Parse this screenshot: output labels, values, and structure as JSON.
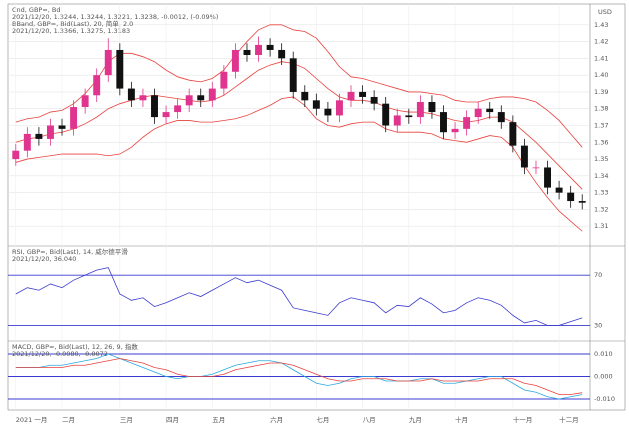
{
  "chart_data": [
    {
      "type": "candlestick",
      "legend": [
        "Cnd, GBP=, Bd",
        "2021/12/20, 1.3244, 1.3244, 1.3221, 1.3238, -0.0012, (-0.09%)",
        "BBand, GBP=, Bid(Last), 20, 简单, 2.0",
        "2021/12/20, 1.3366, 1.3275, 1.3183"
      ],
      "legend_colors": [
        "#000000",
        "#000000",
        "#e8413c",
        "#e8413c"
      ],
      "y_unit": "USD",
      "categories": [
        "2021 一月",
        null,
        null,
        null,
        "二月",
        null,
        null,
        null,
        null,
        "三月",
        null,
        null,
        null,
        "四月",
        null,
        null,
        null,
        "五月",
        null,
        null,
        null,
        null,
        "六月",
        null,
        null,
        null,
        "七月",
        null,
        null,
        null,
        "八月",
        null,
        null,
        null,
        "九月",
        null,
        null,
        null,
        "十月",
        null,
        null,
        null,
        null,
        "十一月",
        null,
        null,
        null,
        "十二月",
        null,
        null
      ],
      "open": [
        1.35,
        1.355,
        1.365,
        1.362,
        1.37,
        1.368,
        1.381,
        1.388,
        1.4,
        1.415,
        1.392,
        1.385,
        1.388,
        1.375,
        1.378,
        1.382,
        1.388,
        1.385,
        1.392,
        1.402,
        1.415,
        1.412,
        1.418,
        1.415,
        1.41,
        1.39,
        1.385,
        1.38,
        1.376,
        1.385,
        1.39,
        1.387,
        1.383,
        1.37,
        1.376,
        1.375,
        1.384,
        1.378,
        1.366,
        1.368,
        1.375,
        1.38,
        1.378,
        1.372,
        1.358,
        1.345,
        1.345,
        1.333,
        1.33,
        1.325
      ],
      "high": [
        1.359,
        1.369,
        1.369,
        1.374,
        1.374,
        1.385,
        1.392,
        1.404,
        1.422,
        1.419,
        1.396,
        1.392,
        1.392,
        1.382,
        1.386,
        1.392,
        1.392,
        1.396,
        1.406,
        1.419,
        1.419,
        1.423,
        1.422,
        1.419,
        1.414,
        1.394,
        1.389,
        1.384,
        1.389,
        1.394,
        1.394,
        1.391,
        1.387,
        1.38,
        1.38,
        1.388,
        1.388,
        1.382,
        1.372,
        1.379,
        1.384,
        1.384,
        1.382,
        1.376,
        1.362,
        1.349,
        1.349,
        1.337,
        1.334,
        1.329
      ],
      "low": [
        1.346,
        1.351,
        1.358,
        1.358,
        1.364,
        1.364,
        1.377,
        1.384,
        1.396,
        1.388,
        1.381,
        1.381,
        1.371,
        1.371,
        1.374,
        1.378,
        1.381,
        1.381,
        1.388,
        1.398,
        1.408,
        1.408,
        1.411,
        1.406,
        1.386,
        1.381,
        1.376,
        1.372,
        1.372,
        1.381,
        1.383,
        1.379,
        1.366,
        1.366,
        1.371,
        1.371,
        1.374,
        1.362,
        1.362,
        1.364,
        1.371,
        1.374,
        1.368,
        1.354,
        1.341,
        1.341,
        1.329,
        1.326,
        1.321,
        1.32
      ],
      "close": [
        1.355,
        1.365,
        1.362,
        1.37,
        1.368,
        1.381,
        1.388,
        1.4,
        1.415,
        1.392,
        1.385,
        1.388,
        1.375,
        1.378,
        1.382,
        1.388,
        1.385,
        1.392,
        1.402,
        1.415,
        1.412,
        1.418,
        1.415,
        1.41,
        1.39,
        1.385,
        1.38,
        1.376,
        1.385,
        1.39,
        1.387,
        1.383,
        1.37,
        1.376,
        1.375,
        1.384,
        1.378,
        1.366,
        1.368,
        1.375,
        1.38,
        1.378,
        1.372,
        1.358,
        1.345,
        1.345,
        1.333,
        1.33,
        1.325,
        1.324
      ],
      "up_color": "#e0358f",
      "down_color": "#111111",
      "bands": {
        "color": "#e8413c",
        "upper": [
          1.372,
          1.374,
          1.375,
          1.378,
          1.379,
          1.383,
          1.389,
          1.397,
          1.408,
          1.413,
          1.413,
          1.411,
          1.408,
          1.403,
          1.399,
          1.397,
          1.396,
          1.398,
          1.403,
          1.412,
          1.42,
          1.427,
          1.43,
          1.43,
          1.427,
          1.426,
          1.422,
          1.414,
          1.405,
          1.399,
          1.398,
          1.396,
          1.394,
          1.392,
          1.39,
          1.39,
          1.389,
          1.388,
          1.385,
          1.384,
          1.384,
          1.386,
          1.387,
          1.387,
          1.386,
          1.384,
          1.379,
          1.373,
          1.365,
          1.357
        ],
        "middle": [
          1.36,
          1.362,
          1.363,
          1.365,
          1.366,
          1.368,
          1.371,
          1.375,
          1.38,
          1.383,
          1.385,
          1.387,
          1.388,
          1.387,
          1.386,
          1.385,
          1.384,
          1.385,
          1.388,
          1.393,
          1.398,
          1.403,
          1.406,
          1.408,
          1.407,
          1.404,
          1.398,
          1.392,
          1.387,
          1.385,
          1.385,
          1.384,
          1.381,
          1.379,
          1.378,
          1.378,
          1.377,
          1.375,
          1.373,
          1.372,
          1.373,
          1.375,
          1.375,
          1.372,
          1.366,
          1.36,
          1.353,
          1.346,
          1.339,
          1.332
        ],
        "lower": [
          1.348,
          1.35,
          1.351,
          1.352,
          1.353,
          1.353,
          1.353,
          1.353,
          1.352,
          1.353,
          1.357,
          1.363,
          1.368,
          1.371,
          1.373,
          1.373,
          1.372,
          1.372,
          1.373,
          1.374,
          1.376,
          1.379,
          1.382,
          1.386,
          1.387,
          1.382,
          1.374,
          1.37,
          1.369,
          1.371,
          1.372,
          1.372,
          1.368,
          1.366,
          1.366,
          1.366,
          1.365,
          1.362,
          1.361,
          1.36,
          1.362,
          1.364,
          1.363,
          1.357,
          1.346,
          1.336,
          1.327,
          1.319,
          1.313,
          1.307
        ]
      },
      "ylim": [
        1.3,
        1.44
      ],
      "yticks": [
        1.31,
        1.32,
        1.33,
        1.34,
        1.35,
        1.36,
        1.37,
        1.38,
        1.39,
        {
          "value": 1.4,
          "label": "1.40"
        },
        1.41,
        1.42,
        1.43
      ],
      "grid": true
    },
    {
      "type": "line",
      "legend": [
        "RSI, GBP=, Bid(Last), 14, 威尔德平滑",
        "2021/12/20, 36.040"
      ],
      "legend_colors": [
        "#3a3ad0",
        "#3a3ad0"
      ],
      "series": [
        {
          "color": "#3a3ad0",
          "values": [
            55,
            60,
            58,
            63,
            60,
            66,
            70,
            74,
            76,
            55,
            50,
            52,
            45,
            48,
            52,
            56,
            53,
            58,
            63,
            68,
            64,
            66,
            62,
            58,
            44,
            42,
            40,
            38,
            48,
            52,
            50,
            48,
            40,
            46,
            45,
            52,
            47,
            40,
            42,
            48,
            52,
            50,
            46,
            38,
            32,
            34,
            30,
            30,
            33,
            36
          ]
        }
      ],
      "ylim": [
        20,
        90
      ],
      "yticks": [
        30,
        70
      ],
      "grid": true,
      "grid_color": "#3a3ad0"
    },
    {
      "type": "line",
      "legend": [
        "MACD, GBP=, Bid(Last), 12, 26, 9, 指数",
        "2021/12/20, -0.0080, -0.0072"
      ],
      "legend_colors": [
        "#2aa8e0",
        "#2aa8e0"
      ],
      "series": [
        {
          "color": "#2aa8e0",
          "values": [
            0.004,
            0.004,
            0.004,
            0.005,
            0.005,
            0.006,
            0.007,
            0.008,
            0.01,
            0.008,
            0.006,
            0.004,
            0.002,
            0.0,
            -0.001,
            0.0,
            0.0,
            0.001,
            0.003,
            0.005,
            0.006,
            0.007,
            0.007,
            0.006,
            0.003,
            0.0,
            -0.003,
            -0.004,
            -0.003,
            -0.001,
            0.0,
            0.0,
            -0.002,
            -0.002,
            -0.002,
            -0.001,
            -0.001,
            -0.003,
            -0.003,
            -0.002,
            -0.001,
            0.0,
            0.0,
            -0.003,
            -0.006,
            -0.007,
            -0.009,
            -0.01,
            -0.009,
            -0.008
          ]
        },
        {
          "color": "#e8413c",
          "values": [
            0.004,
            0.004,
            0.004,
            0.004,
            0.004,
            0.005,
            0.005,
            0.006,
            0.007,
            0.008,
            0.007,
            0.006,
            0.004,
            0.003,
            0.001,
            0.0,
            0.0,
            0.0,
            0.001,
            0.003,
            0.004,
            0.005,
            0.006,
            0.006,
            0.005,
            0.003,
            0.001,
            -0.001,
            -0.002,
            -0.002,
            -0.001,
            -0.001,
            -0.001,
            -0.002,
            -0.002,
            -0.002,
            -0.001,
            -0.002,
            -0.002,
            -0.002,
            -0.002,
            -0.001,
            -0.001,
            -0.001,
            -0.003,
            -0.004,
            -0.006,
            -0.008,
            -0.008,
            -0.0072
          ]
        }
      ],
      "ylim": [
        -0.014,
        0.014
      ],
      "yticks": [
        {
          "value": -0.01,
          "label": "-0.010"
        },
        {
          "value": 0,
          "label": "0.000"
        },
        {
          "value": 0.01,
          "label": "0.010"
        }
      ],
      "grid": true,
      "grid_color": "#3a3ad0"
    }
  ]
}
